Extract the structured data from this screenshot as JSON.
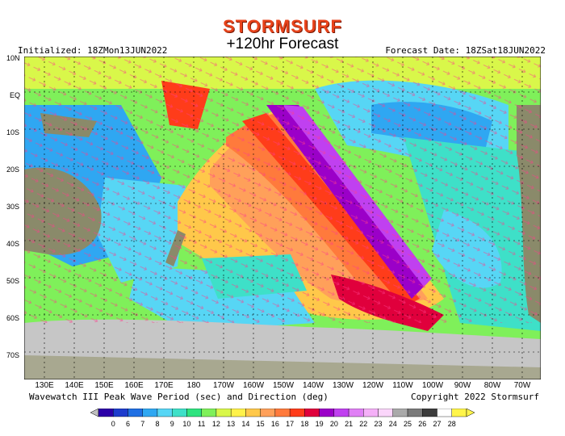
{
  "header": {
    "logo": "STORMSURF",
    "title": "+120hr Forecast",
    "initialized": "Initialized: 18ZMon13JUN2022",
    "forecast_date": "Forecast Date: 18ZSat18JUN2022"
  },
  "axes": {
    "latitudes": [
      "10N",
      "EQ",
      "10S",
      "20S",
      "30S",
      "40S",
      "50S",
      "60S",
      "70S"
    ],
    "longitudes": [
      "130E",
      "140E",
      "150E",
      "160E",
      "170E",
      "180",
      "170W",
      "160W",
      "150W",
      "140W",
      "130W",
      "120W",
      "110W",
      "100W",
      "90W",
      "80W",
      "70W"
    ]
  },
  "footer": {
    "caption": "Wavewatch III Peak Wave Period (sec) and Direction (deg)",
    "copyright": "Copyright 2022 Stormsurf"
  },
  "colorbar": {
    "labels": [
      "0",
      "6",
      "7",
      "8",
      "9",
      "10",
      "11",
      "12",
      "13",
      "14",
      "15",
      "16",
      "17",
      "18",
      "19",
      "20",
      "21",
      "22",
      "23",
      "24",
      "25",
      "26",
      "27",
      "28"
    ],
    "colors": [
      "#2c00a8",
      "#1e3ccd",
      "#1f6fe3",
      "#2fa7f2",
      "#57d6f5",
      "#3ee0c8",
      "#2ee37f",
      "#7ff05a",
      "#d9f74a",
      "#fff24a",
      "#ffc84a",
      "#ffa05a",
      "#ff7a3c",
      "#ff3c1a",
      "#e0003c",
      "#9b00c8",
      "#c040f0",
      "#e080f5",
      "#f5b0f8",
      "#fbd6fb",
      "#aaaaaa",
      "#7a7a7a",
      "#3c3c3c",
      "#ffffff",
      "#fff54a"
    ]
  },
  "legend": {
    "map_colors": {
      "ocean_short": "#7ff05a",
      "ocean_mid": "#ffa05a",
      "ocean_long": "#ff3c1a",
      "swell_core": "#c040f0",
      "ice": "#c6c6c6",
      "land": "#8a8a6a"
    }
  }
}
